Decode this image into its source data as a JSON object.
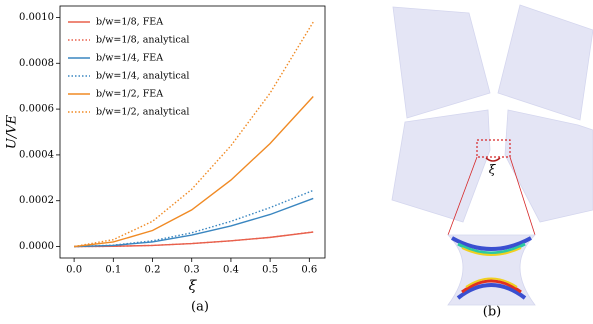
{
  "chart_data": {
    "type": "line",
    "x_label": "ξ",
    "y_label": "U/VE",
    "x": [
      0,
      0.1,
      0.2,
      0.3,
      0.4,
      0.5,
      0.61
    ],
    "series": [
      {
        "name": "b/w=1/8, FEA",
        "color": "#e8604c",
        "dash": false,
        "values": [
          0,
          1e-06,
          5e-06,
          1.3e-05,
          2.5e-05,
          4e-05,
          6.3e-05
        ]
      },
      {
        "name": "b/w=1/8, analytical",
        "color": "#e8604c",
        "dash": true,
        "values": [
          0,
          1e-06,
          5e-06,
          1.3e-05,
          2.5e-05,
          4e-05,
          6.4e-05
        ]
      },
      {
        "name": "b/w=1/4, FEA",
        "color": "#3a86c0",
        "dash": false,
        "values": [
          0,
          5e-06,
          2e-05,
          5e-05,
          9e-05,
          0.00014,
          0.00021
        ]
      },
      {
        "name": "b/w=1/4, analytical",
        "color": "#3a86c0",
        "dash": true,
        "values": [
          0,
          6e-06,
          2.5e-05,
          6e-05,
          0.00011,
          0.00017,
          0.000245
        ]
      },
      {
        "name": "b/w=1/2, FEA",
        "color": "#f08a24",
        "dash": false,
        "values": [
          0,
          2e-05,
          7e-05,
          0.00016,
          0.00029,
          0.00045,
          0.000655
        ]
      },
      {
        "name": "b/w=1/2, analytical",
        "color": "#f08a24",
        "dash": true,
        "values": [
          0,
          3e-05,
          0.00011,
          0.00025,
          0.00044,
          0.00067,
          0.00098
        ]
      }
    ],
    "xlim": [
      -0.036,
      0.64
    ],
    "xticks": [
      {
        "value": 0,
        "label": "0.0"
      },
      0.1,
      0.2,
      0.3,
      0.4,
      0.5,
      0.6
    ],
    "ylim": [
      -5e-05,
      0.00105
    ],
    "yticks": [
      {
        "value": 0,
        "label": "0.0000"
      },
      {
        "value": 0.0002,
        "label": "0.0002"
      },
      {
        "value": 0.0004,
        "label": "0.0004"
      },
      {
        "value": 0.0006,
        "label": "0.0006"
      },
      {
        "value": 0.0008,
        "label": "0.0008"
      },
      {
        "value": 0.001,
        "label": "0.0010"
      }
    ],
    "legend": "upper left",
    "grid": false
  },
  "panels": {
    "a": "(a)",
    "b": "(b)",
    "annotation": "ξ"
  }
}
